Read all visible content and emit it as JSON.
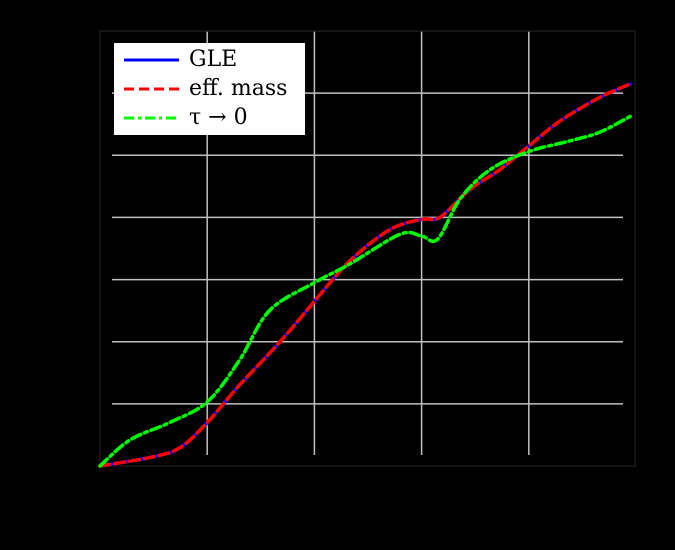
{
  "chart_data": {
    "type": "line",
    "title": "",
    "xlabel": "",
    "ylabel": "",
    "xlim": [
      0,
      5
    ],
    "ylim": [
      0,
      7
    ],
    "grid": true,
    "legend_position": "upper left",
    "x_gridlines": [
      1,
      2,
      3,
      4
    ],
    "y_gridlines": [
      1,
      2,
      3,
      4,
      5,
      6
    ],
    "series": [
      {
        "name": "GLE",
        "color": "#0000ff",
        "style": "solid",
        "x": [
          0,
          0.5,
          0.75,
          1.0,
          1.3,
          1.68,
          2.0,
          2.33,
          2.7,
          3.0,
          3.17,
          3.45,
          3.73,
          4.0,
          4.29,
          4.66,
          4.95
        ],
        "y": [
          0,
          0.15,
          0.3,
          0.7,
          1.3,
          2.0,
          2.65,
          3.3,
          3.8,
          3.97,
          4.0,
          4.45,
          4.77,
          5.15,
          5.55,
          5.93,
          6.15
        ]
      },
      {
        "name": "eff. mass",
        "color": "#ff0000",
        "style": "dashed",
        "x": [
          0,
          0.5,
          0.75,
          1.0,
          1.3,
          1.68,
          2.0,
          2.33,
          2.7,
          3.0,
          3.17,
          3.45,
          3.73,
          4.0,
          4.29,
          4.66,
          4.95
        ],
        "y": [
          0,
          0.15,
          0.3,
          0.7,
          1.3,
          2.0,
          2.65,
          3.3,
          3.8,
          3.97,
          4.0,
          4.45,
          4.77,
          5.15,
          5.55,
          5.93,
          6.15
        ]
      },
      {
        "name": "τ → 0",
        "color": "#00ff00",
        "style": "dashdot",
        "x": [
          0,
          0.28,
          0.65,
          1.0,
          1.3,
          1.58,
          2.0,
          2.33,
          2.8,
          3.0,
          3.15,
          3.36,
          3.64,
          4.0,
          4.38,
          4.66,
          4.95
        ],
        "y": [
          0,
          0.42,
          0.7,
          1.03,
          1.7,
          2.5,
          2.95,
          3.25,
          3.73,
          3.7,
          3.65,
          4.3,
          4.77,
          5.06,
          5.23,
          5.37,
          5.63
        ]
      }
    ]
  },
  "legend": {
    "items": [
      {
        "label": "GLE",
        "color": "#0000ff"
      },
      {
        "label": "eff. mass",
        "color": "#ff0000"
      },
      {
        "label": "τ → 0",
        "color": "#00ff00"
      }
    ]
  },
  "colors": {
    "background": "#000000",
    "grid": "#c0c0c0",
    "axes": "#1a1a1a",
    "legend_bg": "#ffffff"
  }
}
